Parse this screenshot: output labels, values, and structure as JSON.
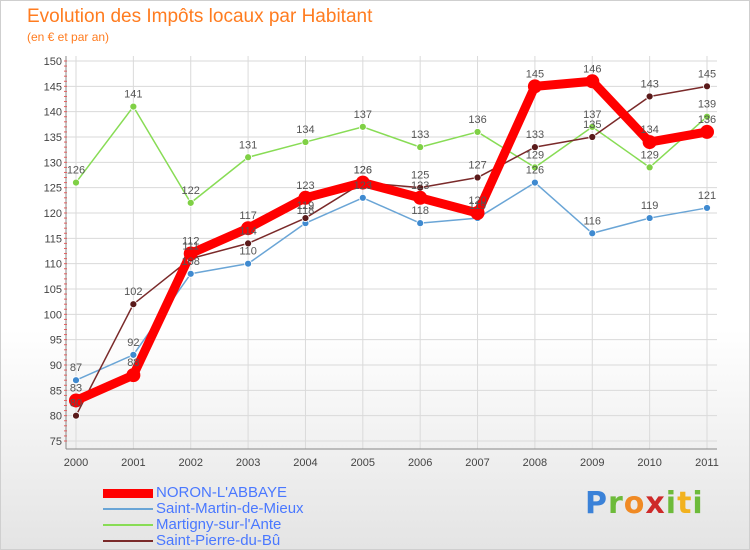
{
  "title": "Evolution des Impôts locaux par Habitant",
  "subtitle": "(en € et par an)",
  "logo": {
    "text": "Proxiti"
  },
  "chart_data": {
    "type": "line",
    "title": "Evolution des Impôts locaux par Habitant",
    "subtitle": "(en € et par an)",
    "xlabel": "",
    "ylabel": "",
    "categories": [
      "2000",
      "2001",
      "2002",
      "2003",
      "2004",
      "2005",
      "2006",
      "2007",
      "2008",
      "2009",
      "2010",
      "2011"
    ],
    "yticks": [
      "75",
      "80",
      "85",
      "90",
      "95",
      "100",
      "105",
      "110",
      "115",
      "120",
      "125",
      "130",
      "135",
      "140",
      "145",
      "150"
    ],
    "ylim": [
      75,
      150
    ],
    "grid": true,
    "legend_position": "bottom-left",
    "series": [
      {
        "name": "NORON-L'ABBAYE",
        "color": "#ff0000",
        "marker": "#ff0000",
        "values": [
          83,
          88,
          112,
          117,
          123,
          126,
          123,
          120,
          145,
          146,
          134,
          136
        ]
      },
      {
        "name": "Saint-Martin-de-Mieux",
        "color": "#6aa5d6",
        "marker": "#3f8ad0",
        "values": [
          87,
          92,
          108,
          110,
          118,
          123,
          118,
          119,
          126,
          116,
          119,
          121
        ]
      },
      {
        "name": "Martigny-sur-l'Ante",
        "color": "#88dc55",
        "marker": "#7fd045",
        "values": [
          126,
          141,
          122,
          131,
          134,
          137,
          133,
          136,
          129,
          137,
          129,
          139
        ]
      },
      {
        "name": "Saint-Pierre-du-Bû",
        "color": "#7a2a2a",
        "marker": "#5a1a1a",
        "values": [
          80,
          102,
          111,
          114,
          119,
          126,
          125,
          127,
          133,
          135,
          143,
          145
        ]
      }
    ]
  }
}
